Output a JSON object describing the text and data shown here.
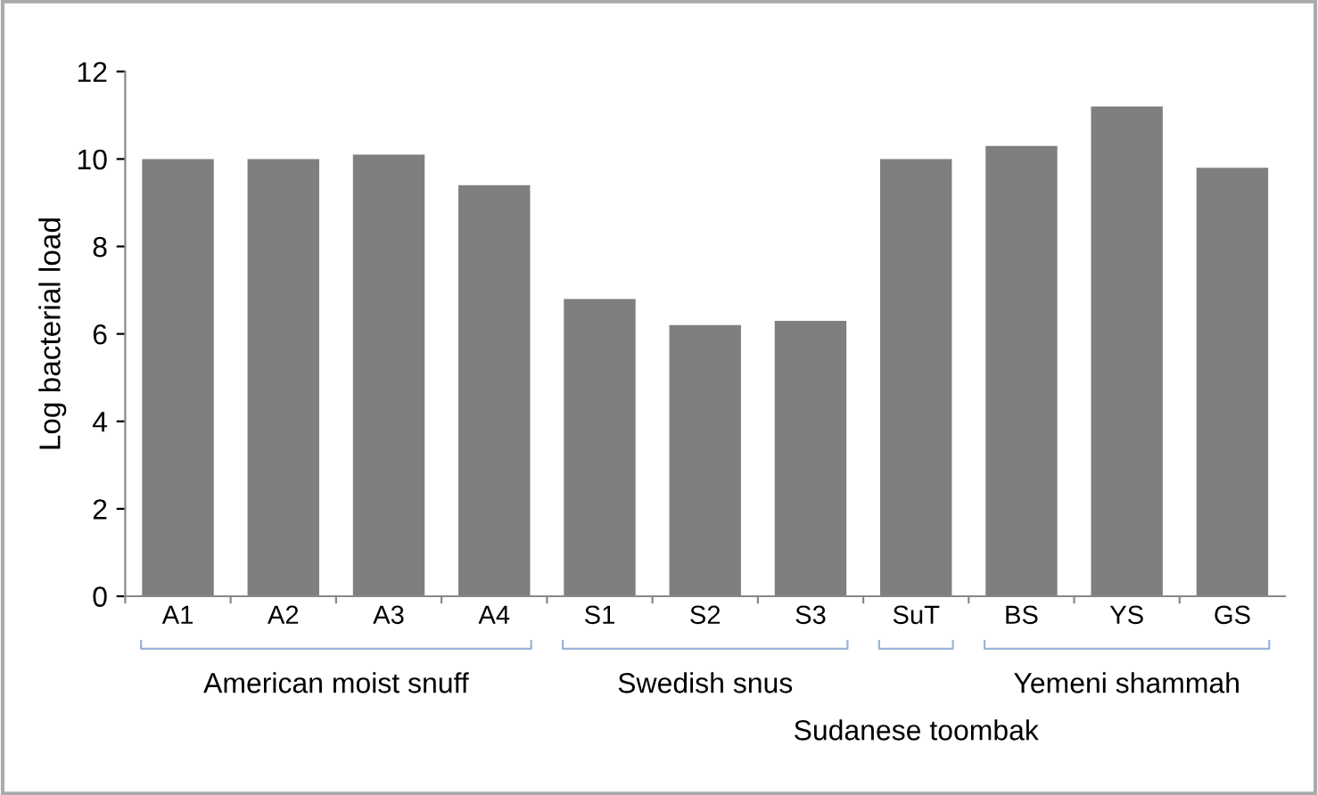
{
  "chart_data": {
    "type": "bar",
    "ylabel": "Log bacterial load",
    "categories": [
      "A1",
      "A2",
      "A3",
      "A4",
      "S1",
      "S2",
      "S3",
      "SuT",
      "BS",
      "YS",
      "GS"
    ],
    "values": [
      10.0,
      10.0,
      10.1,
      9.4,
      6.8,
      6.2,
      6.3,
      10.0,
      10.3,
      11.2,
      9.8
    ],
    "color": "#7f7f7f",
    "ylim": [
      0,
      12
    ],
    "yticks": [
      0,
      2,
      4,
      6,
      8,
      10,
      12
    ],
    "grid": false,
    "annotations": [
      "American moist snuff",
      "Swedish snus",
      "Sudanese toombak",
      "Yemeni shammah"
    ]
  }
}
